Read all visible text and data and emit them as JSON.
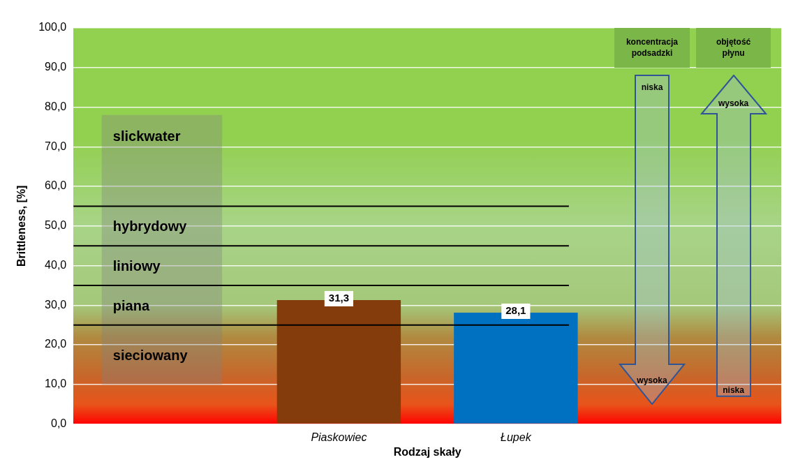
{
  "chart_data": {
    "type": "bar",
    "xlabel": "Rodzaj skały",
    "ylabel": "Brittleness, [%]",
    "categories": [
      null,
      "Piaskowiec",
      "Łupek",
      null
    ],
    "values": [
      null,
      31.3,
      28.1,
      null
    ],
    "colors": [
      null,
      "#843c0c",
      "#0070c0",
      null
    ],
    "value_labels": [
      null,
      "31,3",
      "28,1",
      null
    ],
    "ylim": [
      0,
      100
    ],
    "yticks": [
      {
        "value": 0,
        "label": "0,0"
      },
      {
        "value": 10,
        "label": "10,0"
      },
      {
        "value": 20,
        "label": "20,0"
      },
      {
        "value": 30,
        "label": "30,0"
      },
      {
        "value": 40,
        "label": "40,0"
      },
      {
        "value": 50,
        "label": "50,0"
      },
      {
        "value": 60,
        "label": "60,0"
      },
      {
        "value": 70,
        "label": "70,0"
      },
      {
        "value": 80,
        "label": "80,0"
      },
      {
        "value": 90,
        "label": "90,0"
      },
      {
        "value": 100,
        "label": "100,0"
      }
    ],
    "grid": "y",
    "ref_lines": [
      {
        "axis": "y",
        "value": 25,
        "color": "#000000"
      },
      {
        "axis": "y",
        "value": 35,
        "color": "#000000"
      },
      {
        "axis": "y",
        "value": 45,
        "color": "#000000"
      },
      {
        "axis": "y",
        "value": 55,
        "color": "#000000"
      }
    ],
    "bands": [
      {
        "axis": "y",
        "from": 10,
        "to": 25,
        "label": "sieciowany",
        "color": "#808080"
      },
      {
        "axis": "y",
        "from": 25,
        "to": 35,
        "label": "piana",
        "color": "#808080"
      },
      {
        "axis": "y",
        "from": 35,
        "to": 45,
        "label": "liniowy",
        "color": "#808080"
      },
      {
        "axis": "y",
        "from": 45,
        "to": 55,
        "label": "hybrydowy",
        "color": "#808080"
      },
      {
        "axis": "y",
        "from": 55,
        "to": 78,
        "label": "slickwater",
        "color": "#808080"
      }
    ],
    "annotations": [
      "koncentracja podsadzki",
      "niska",
      "wysoka",
      "objętość płynu",
      "wysoka",
      "niska"
    ]
  }
}
